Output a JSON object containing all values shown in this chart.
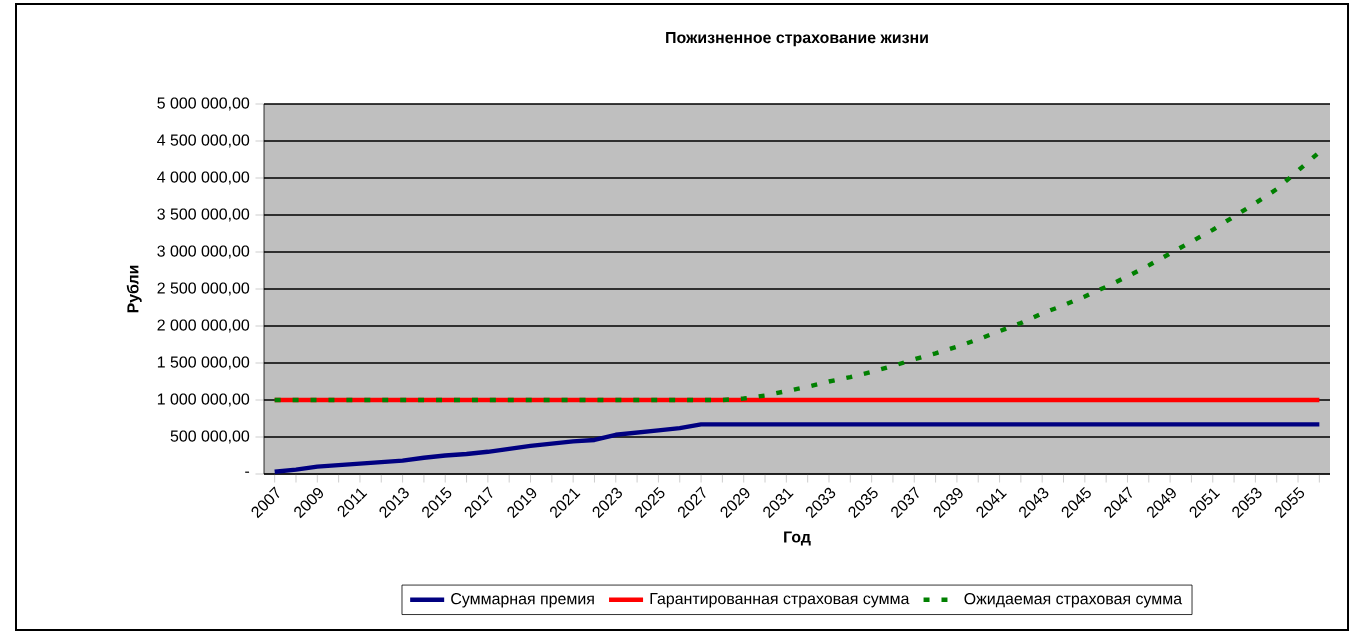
{
  "chart_data": {
    "type": "line",
    "title": "Пожизненное страхование жизни",
    "xlabel": "Год",
    "ylabel": "Рубли",
    "categories": [
      "2007",
      null,
      "2009",
      null,
      "2011",
      null,
      "2013",
      null,
      "2015",
      null,
      "2017",
      null,
      "2019",
      null,
      "2021",
      null,
      "2023",
      null,
      "2025",
      null,
      "2027",
      null,
      "2029",
      null,
      "2031",
      null,
      "2033",
      null,
      "2035",
      null,
      "2037",
      null,
      "2039",
      null,
      "2041",
      null,
      "2043",
      null,
      "2045",
      null,
      "2047",
      null,
      "2049",
      null,
      "2051",
      null,
      "2053",
      null,
      "2055",
      null
    ],
    "series": [
      {
        "name": "Суммарная премия",
        "color": "#000080",
        "line_style": "solid",
        "values": [
          30000,
          60000,
          100000,
          120000,
          140000,
          160000,
          180000,
          220000,
          250000,
          270000,
          300000,
          340000,
          380000,
          410000,
          440000,
          460000,
          530000,
          560000,
          590000,
          620000,
          670000,
          670000,
          670000,
          670000,
          670000,
          670000,
          670000,
          670000,
          670000,
          670000,
          670000,
          670000,
          670000,
          670000,
          670000,
          670000,
          670000,
          670000,
          670000,
          670000,
          670000,
          670000,
          670000,
          670000,
          670000,
          670000,
          670000,
          670000,
          670000,
          670000
        ]
      },
      {
        "name": "Гарантированная страховая сумма",
        "color": "#ff0000",
        "line_style": "solid",
        "values": [
          1000000,
          1000000,
          1000000,
          1000000,
          1000000,
          1000000,
          1000000,
          1000000,
          1000000,
          1000000,
          1000000,
          1000000,
          1000000,
          1000000,
          1000000,
          1000000,
          1000000,
          1000000,
          1000000,
          1000000,
          1000000,
          1000000,
          1000000,
          1000000,
          1000000,
          1000000,
          1000000,
          1000000,
          1000000,
          1000000,
          1000000,
          1000000,
          1000000,
          1000000,
          1000000,
          1000000,
          1000000,
          1000000,
          1000000,
          1000000,
          1000000,
          1000000,
          1000000,
          1000000,
          1000000,
          1000000,
          1000000,
          1000000,
          1000000,
          1000000
        ]
      },
      {
        "name": "Ожидаемая страховая сумма",
        "color": "#008000",
        "line_style": "dashed",
        "values": [
          1000000,
          1000000,
          1000000,
          1000000,
          1000000,
          1000000,
          1000000,
          1000000,
          1000000,
          1000000,
          1000000,
          1000000,
          1000000,
          1000000,
          1000000,
          1000000,
          1000000,
          1000000,
          1000000,
          1000000,
          1000000,
          1000000,
          1020000,
          1060000,
          1120000,
          1180000,
          1250000,
          1310000,
          1380000,
          1460000,
          1550000,
          1630000,
          1720000,
          1820000,
          1930000,
          2040000,
          2170000,
          2280000,
          2400000,
          2530000,
          2670000,
          2820000,
          2980000,
          3140000,
          3300000,
          3480000,
          3660000,
          3850000,
          4100000,
          4350000
        ]
      }
    ],
    "ylim": [
      0,
      5000000
    ],
    "yticks": [
      {
        "value": 0,
        "label": "-"
      },
      {
        "value": 500000,
        "label": "500 000,00"
      },
      {
        "value": 1000000,
        "label": "1 000 000,00"
      },
      {
        "value": 1500000,
        "label": "1 500 000,00"
      },
      {
        "value": 2000000,
        "label": "2 000 000,00"
      },
      {
        "value": 2500000,
        "label": "2 500 000,00"
      },
      {
        "value": 3000000,
        "label": "3 000 000,00"
      },
      {
        "value": 3500000,
        "label": "3 500 000,00"
      },
      {
        "value": 4000000,
        "label": "4 000 000,00"
      },
      {
        "value": 4500000,
        "label": "4 500 000,00"
      },
      {
        "value": 5000000,
        "label": "5 000 000,00"
      }
    ],
    "grid": "y",
    "legend": "bottom"
  }
}
